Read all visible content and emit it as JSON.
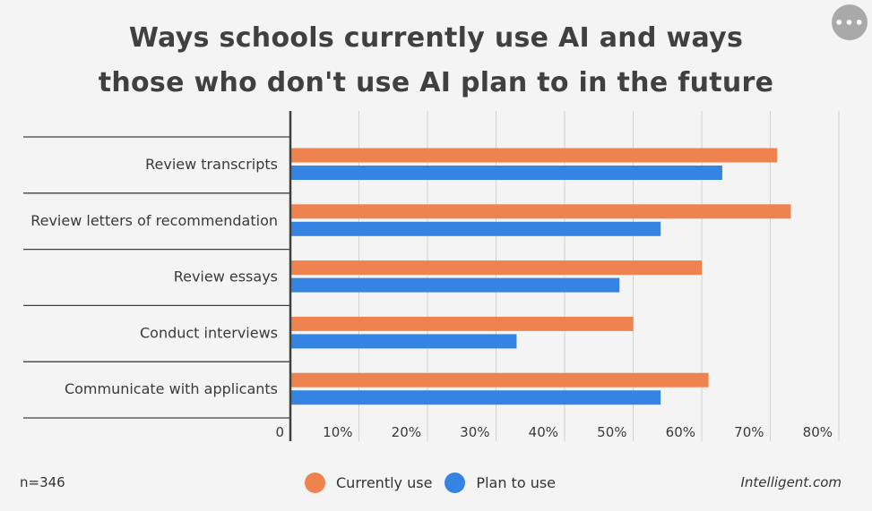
{
  "chart_data": {
    "type": "bar",
    "orientation": "horizontal",
    "title_lines": [
      "Ways schools currently use AI and ways",
      "those who don't use AI plan to in the future"
    ],
    "categories": [
      "Review transcripts",
      "Review letters of recommendation",
      "Review essays",
      "Conduct interviews",
      "Communicate with applicants"
    ],
    "series": [
      {
        "name": "Currently use",
        "color": "#ef8350",
        "values": [
          71,
          73,
          60,
          50,
          61
        ]
      },
      {
        "name": "Plan to use",
        "color": "#3584e4",
        "values": [
          63,
          54,
          48,
          33,
          54
        ]
      }
    ],
    "xlim": [
      0,
      80
    ],
    "x_ticks": [
      {
        "value": 0,
        "label": "0"
      },
      {
        "value": 10,
        "label": "10%"
      },
      {
        "value": 20,
        "label": "20%"
      },
      {
        "value": 30,
        "label": "30%"
      },
      {
        "value": 40,
        "label": "40%"
      },
      {
        "value": 50,
        "label": "50%"
      },
      {
        "value": 60,
        "label": "60%"
      },
      {
        "value": 70,
        "label": "70%"
      },
      {
        "value": 80,
        "label": "80%"
      }
    ],
    "grid": true,
    "legend_position": "bottom-center"
  },
  "footer": {
    "sample_size": "n=346",
    "source": "Intelligent.com"
  },
  "menu": {
    "label": "•••"
  }
}
